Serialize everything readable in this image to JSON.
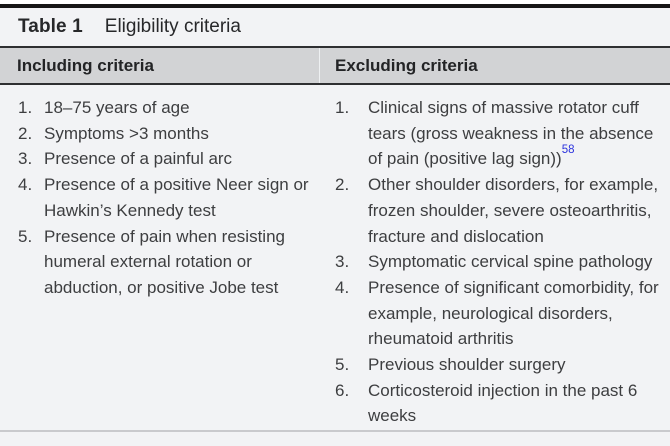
{
  "theme": {
    "header_bg": "#d2d3d5",
    "body_bg": "#f2f3f5",
    "rule_dark": "#161616",
    "citation_blue": "#2c33dd"
  },
  "table": {
    "label": "Table 1",
    "caption": "Eligibility criteria",
    "columns": [
      {
        "header": "Including criteria",
        "items": [
          {
            "num": "1.",
            "text": "18–75 years of age"
          },
          {
            "num": "2.",
            "text": "Symptoms >3 months"
          },
          {
            "num": "3.",
            "text": "Presence of a painful arc"
          },
          {
            "num": "4.",
            "text": "Presence of a positive Neer sign or Hawkin’s Kennedy test"
          },
          {
            "num": "5.",
            "text": "Presence of pain when resisting humeral external rotation or abduction, or positive Jobe test"
          }
        ]
      },
      {
        "header": "Excluding criteria",
        "items": [
          {
            "num": "1.",
            "text": "Clinical signs of massive rotator cuff tears (gross weakness in the absence of pain (positive lag sign))",
            "citation": "58"
          },
          {
            "num": "2.",
            "text": "Other shoulder disorders, for example, frozen shoulder, severe osteoarthritis, fracture and dislocation"
          },
          {
            "num": "3.",
            "text": "Symptomatic cervical spine pathology"
          },
          {
            "num": "4.",
            "text": "Presence of significant comorbidity, for example, neurological disorders, rheumatoid arthritis"
          },
          {
            "num": "5.",
            "text": "Previous shoulder surgery"
          },
          {
            "num": "6.",
            "text": "Corticosteroid injection in the past 6 weeks"
          }
        ]
      }
    ]
  }
}
